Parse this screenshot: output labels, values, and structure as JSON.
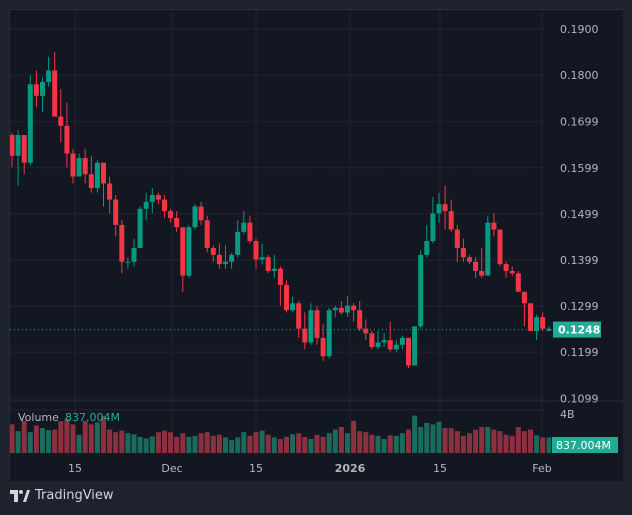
{
  "brand": {
    "name": "TradingView",
    "icon": "tradingview-logo-icon"
  },
  "colors": {
    "up": "#089981",
    "down": "#f23645",
    "volume_up": "#1a6b5c",
    "volume_down": "#8c3040",
    "background": "#131722",
    "outer": "#1e222d",
    "grid": "#2a2e39",
    "text": "#b2b5be",
    "accent": "#22ab94"
  },
  "price_axis": {
    "ticks": [
      "0.1900",
      "0.1800",
      "0.1699",
      "0.1599",
      "0.1499",
      "0.1399",
      "0.1299",
      "0.1199",
      "0.1099"
    ],
    "last_price": "0.1248"
  },
  "volume_axis": {
    "ticks": [
      "4B"
    ],
    "last_volume": "837.004M"
  },
  "volume_legend": {
    "label": "Volume",
    "value": "837.004M"
  },
  "time_axis": {
    "ticks": [
      "15",
      "Dec",
      "15",
      "2026",
      "15",
      "Feb"
    ]
  },
  "chart_data": {
    "type": "candlestick",
    "title": "",
    "xlabel": "",
    "ylabel": "",
    "ylim": [
      0.1099,
      0.19
    ],
    "grid": true,
    "last_price": 0.1248,
    "x_ticks": [
      "15",
      "Dec",
      "15",
      "2026",
      "15",
      "Feb"
    ],
    "y_ticks": [
      0.19,
      0.18,
      0.1699,
      0.1599,
      0.1499,
      0.1399,
      0.1299,
      0.1199,
      0.1099
    ],
    "candles": [
      {
        "o": 0.167,
        "c": 0.1625,
        "h": 0.1675,
        "l": 0.16
      },
      {
        "o": 0.1625,
        "c": 0.167,
        "h": 0.168,
        "l": 0.156
      },
      {
        "o": 0.167,
        "c": 0.161,
        "h": 0.167,
        "l": 0.1585
      },
      {
        "o": 0.161,
        "c": 0.178,
        "h": 0.18,
        "l": 0.1605
      },
      {
        "o": 0.178,
        "c": 0.1755,
        "h": 0.181,
        "l": 0.173
      },
      {
        "o": 0.1755,
        "c": 0.1785,
        "h": 0.1795,
        "l": 0.172
      },
      {
        "o": 0.1785,
        "c": 0.181,
        "h": 0.184,
        "l": 0.1775
      },
      {
        "o": 0.181,
        "c": 0.171,
        "h": 0.185,
        "l": 0.171
      },
      {
        "o": 0.171,
        "c": 0.169,
        "h": 0.177,
        "l": 0.1655
      },
      {
        "o": 0.169,
        "c": 0.163,
        "h": 0.174,
        "l": 0.16
      },
      {
        "o": 0.163,
        "c": 0.158,
        "h": 0.164,
        "l": 0.1565
      },
      {
        "o": 0.158,
        "c": 0.162,
        "h": 0.163,
        "l": 0.158
      },
      {
        "o": 0.162,
        "c": 0.1585,
        "h": 0.164,
        "l": 0.1565
      },
      {
        "o": 0.1585,
        "c": 0.1555,
        "h": 0.1625,
        "l": 0.1545
      },
      {
        "o": 0.1555,
        "c": 0.161,
        "h": 0.1615,
        "l": 0.1545
      },
      {
        "o": 0.161,
        "c": 0.1565,
        "h": 0.161,
        "l": 0.1515
      },
      {
        "o": 0.1565,
        "c": 0.153,
        "h": 0.158,
        "l": 0.15
      },
      {
        "o": 0.153,
        "c": 0.1475,
        "h": 0.154,
        "l": 0.145
      },
      {
        "o": 0.1475,
        "c": 0.1395,
        "h": 0.1485,
        "l": 0.137
      },
      {
        "o": 0.1395,
        "c": 0.1395,
        "h": 0.1405,
        "l": 0.138
      },
      {
        "o": 0.1395,
        "c": 0.1425,
        "h": 0.1445,
        "l": 0.1385
      },
      {
        "o": 0.1425,
        "c": 0.151,
        "h": 0.1515,
        "l": 0.1425
      },
      {
        "o": 0.151,
        "c": 0.1525,
        "h": 0.1545,
        "l": 0.1485
      },
      {
        "o": 0.1525,
        "c": 0.154,
        "h": 0.1555,
        "l": 0.15
      },
      {
        "o": 0.154,
        "c": 0.153,
        "h": 0.1545,
        "l": 0.152
      },
      {
        "o": 0.153,
        "c": 0.1505,
        "h": 0.154,
        "l": 0.149
      },
      {
        "o": 0.1505,
        "c": 0.149,
        "h": 0.151,
        "l": 0.148
      },
      {
        "o": 0.149,
        "c": 0.147,
        "h": 0.1505,
        "l": 0.146
      },
      {
        "o": 0.147,
        "c": 0.1365,
        "h": 0.147,
        "l": 0.133
      },
      {
        "o": 0.1365,
        "c": 0.147,
        "h": 0.1475,
        "l": 0.136
      },
      {
        "o": 0.147,
        "c": 0.1515,
        "h": 0.152,
        "l": 0.1465
      },
      {
        "o": 0.1515,
        "c": 0.1485,
        "h": 0.1525,
        "l": 0.1475
      },
      {
        "o": 0.1485,
        "c": 0.1425,
        "h": 0.1495,
        "l": 0.1415
      },
      {
        "o": 0.1425,
        "c": 0.141,
        "h": 0.143,
        "l": 0.1395
      },
      {
        "o": 0.141,
        "c": 0.139,
        "h": 0.1435,
        "l": 0.138
      },
      {
        "o": 0.139,
        "c": 0.1395,
        "h": 0.143,
        "l": 0.138
      },
      {
        "o": 0.1395,
        "c": 0.141,
        "h": 0.1415,
        "l": 0.138
      },
      {
        "o": 0.141,
        "c": 0.146,
        "h": 0.1485,
        "l": 0.1405
      },
      {
        "o": 0.146,
        "c": 0.148,
        "h": 0.1505,
        "l": 0.1455
      },
      {
        "o": 0.148,
        "c": 0.144,
        "h": 0.1495,
        "l": 0.1435
      },
      {
        "o": 0.144,
        "c": 0.14,
        "h": 0.1445,
        "l": 0.138
      },
      {
        "o": 0.14,
        "c": 0.1405,
        "h": 0.1435,
        "l": 0.139
      },
      {
        "o": 0.1405,
        "c": 0.1375,
        "h": 0.141,
        "l": 0.137
      },
      {
        "o": 0.1375,
        "c": 0.138,
        "h": 0.141,
        "l": 0.136
      },
      {
        "o": 0.138,
        "c": 0.1345,
        "h": 0.1385,
        "l": 0.13
      },
      {
        "o": 0.1345,
        "c": 0.129,
        "h": 0.1355,
        "l": 0.1285
      },
      {
        "o": 0.129,
        "c": 0.1305,
        "h": 0.132,
        "l": 0.1285
      },
      {
        "o": 0.1305,
        "c": 0.125,
        "h": 0.131,
        "l": 0.123
      },
      {
        "o": 0.125,
        "c": 0.122,
        "h": 0.1285,
        "l": 0.1205
      },
      {
        "o": 0.122,
        "c": 0.129,
        "h": 0.1305,
        "l": 0.1215
      },
      {
        "o": 0.129,
        "c": 0.123,
        "h": 0.13,
        "l": 0.1215
      },
      {
        "o": 0.123,
        "c": 0.119,
        "h": 0.126,
        "l": 0.118
      },
      {
        "o": 0.119,
        "c": 0.129,
        "h": 0.1295,
        "l": 0.1185
      },
      {
        "o": 0.129,
        "c": 0.1295,
        "h": 0.13,
        "l": 0.1275
      },
      {
        "o": 0.1295,
        "c": 0.1285,
        "h": 0.131,
        "l": 0.128
      },
      {
        "o": 0.1285,
        "c": 0.13,
        "h": 0.132,
        "l": 0.1275
      },
      {
        "o": 0.13,
        "c": 0.129,
        "h": 0.1305,
        "l": 0.1265
      },
      {
        "o": 0.129,
        "c": 0.125,
        "h": 0.131,
        "l": 0.1245
      },
      {
        "o": 0.125,
        "c": 0.124,
        "h": 0.127,
        "l": 0.1225
      },
      {
        "o": 0.124,
        "c": 0.121,
        "h": 0.1245,
        "l": 0.1205
      },
      {
        "o": 0.121,
        "c": 0.122,
        "h": 0.1245,
        "l": 0.1205
      },
      {
        "o": 0.122,
        "c": 0.1225,
        "h": 0.124,
        "l": 0.121
      },
      {
        "o": 0.1225,
        "c": 0.1205,
        "h": 0.1265,
        "l": 0.12
      },
      {
        "o": 0.1205,
        "c": 0.1215,
        "h": 0.1225,
        "l": 0.12
      },
      {
        "o": 0.1215,
        "c": 0.123,
        "h": 0.1235,
        "l": 0.1205
      },
      {
        "o": 0.123,
        "c": 0.117,
        "h": 0.123,
        "l": 0.1165
      },
      {
        "o": 0.117,
        "c": 0.1255,
        "h": 0.1255,
        "l": 0.117
      },
      {
        "o": 0.1255,
        "c": 0.141,
        "h": 0.142,
        "l": 0.125
      },
      {
        "o": 0.141,
        "c": 0.144,
        "h": 0.1475,
        "l": 0.1405
      },
      {
        "o": 0.144,
        "c": 0.15,
        "h": 0.1535,
        "l": 0.1435
      },
      {
        "o": 0.15,
        "c": 0.152,
        "h": 0.1545,
        "l": 0.148
      },
      {
        "o": 0.152,
        "c": 0.1505,
        "h": 0.156,
        "l": 0.1465
      },
      {
        "o": 0.1505,
        "c": 0.1465,
        "h": 0.153,
        "l": 0.146
      },
      {
        "o": 0.1465,
        "c": 0.1425,
        "h": 0.1475,
        "l": 0.1395
      },
      {
        "o": 0.1425,
        "c": 0.1405,
        "h": 0.1445,
        "l": 0.1395
      },
      {
        "o": 0.1405,
        "c": 0.1395,
        "h": 0.141,
        "l": 0.139
      },
      {
        "o": 0.1395,
        "c": 0.1375,
        "h": 0.1405,
        "l": 0.136
      },
      {
        "o": 0.1375,
        "c": 0.1365,
        "h": 0.1425,
        "l": 0.136
      },
      {
        "o": 0.1365,
        "c": 0.148,
        "h": 0.1495,
        "l": 0.1365
      },
      {
        "o": 0.148,
        "c": 0.1465,
        "h": 0.15,
        "l": 0.145
      },
      {
        "o": 0.1465,
        "c": 0.139,
        "h": 0.1465,
        "l": 0.1385
      },
      {
        "o": 0.139,
        "c": 0.1375,
        "h": 0.1395,
        "l": 0.136
      },
      {
        "o": 0.1375,
        "c": 0.137,
        "h": 0.1385,
        "l": 0.1365
      },
      {
        "o": 0.137,
        "c": 0.133,
        "h": 0.1375,
        "l": 0.133
      },
      {
        "o": 0.133,
        "c": 0.1305,
        "h": 0.133,
        "l": 0.1255
      },
      {
        "o": 0.1305,
        "c": 0.1245,
        "h": 0.1305,
        "l": 0.1245
      },
      {
        "o": 0.1245,
        "c": 0.1275,
        "h": 0.128,
        "l": 0.1225
      },
      {
        "o": 0.1275,
        "c": 0.125,
        "h": 0.1285,
        "l": 0.1245
      },
      {
        "o": 0.1245,
        "c": 0.125,
        "h": 0.1255,
        "l": 0.1245
      }
    ],
    "volume_series_note": "relative bar heights, 0-1 scale of volume pane",
    "volume": [
      0.55,
      0.42,
      0.62,
      0.4,
      0.53,
      0.48,
      0.44,
      0.45,
      0.61,
      0.66,
      0.55,
      0.35,
      0.62,
      0.55,
      0.59,
      0.71,
      0.45,
      0.4,
      0.43,
      0.38,
      0.36,
      0.31,
      0.28,
      0.32,
      0.4,
      0.43,
      0.4,
      0.31,
      0.38,
      0.31,
      0.33,
      0.38,
      0.4,
      0.33,
      0.35,
      0.3,
      0.25,
      0.3,
      0.4,
      0.33,
      0.4,
      0.43,
      0.35,
      0.3,
      0.27,
      0.31,
      0.36,
      0.38,
      0.31,
      0.27,
      0.35,
      0.31,
      0.38,
      0.45,
      0.5,
      0.38,
      0.62,
      0.42,
      0.4,
      0.35,
      0.33,
      0.27,
      0.34,
      0.33,
      0.38,
      0.45,
      0.72,
      0.5,
      0.58,
      0.55,
      0.6,
      0.48,
      0.48,
      0.42,
      0.33,
      0.38,
      0.45,
      0.5,
      0.5,
      0.45,
      0.42,
      0.35,
      0.33,
      0.5,
      0.42,
      0.45,
      0.34,
      0.3,
      0.3
    ],
    "volume_last": "837.004M",
    "volume_axis_ticks": [
      "4B"
    ]
  }
}
